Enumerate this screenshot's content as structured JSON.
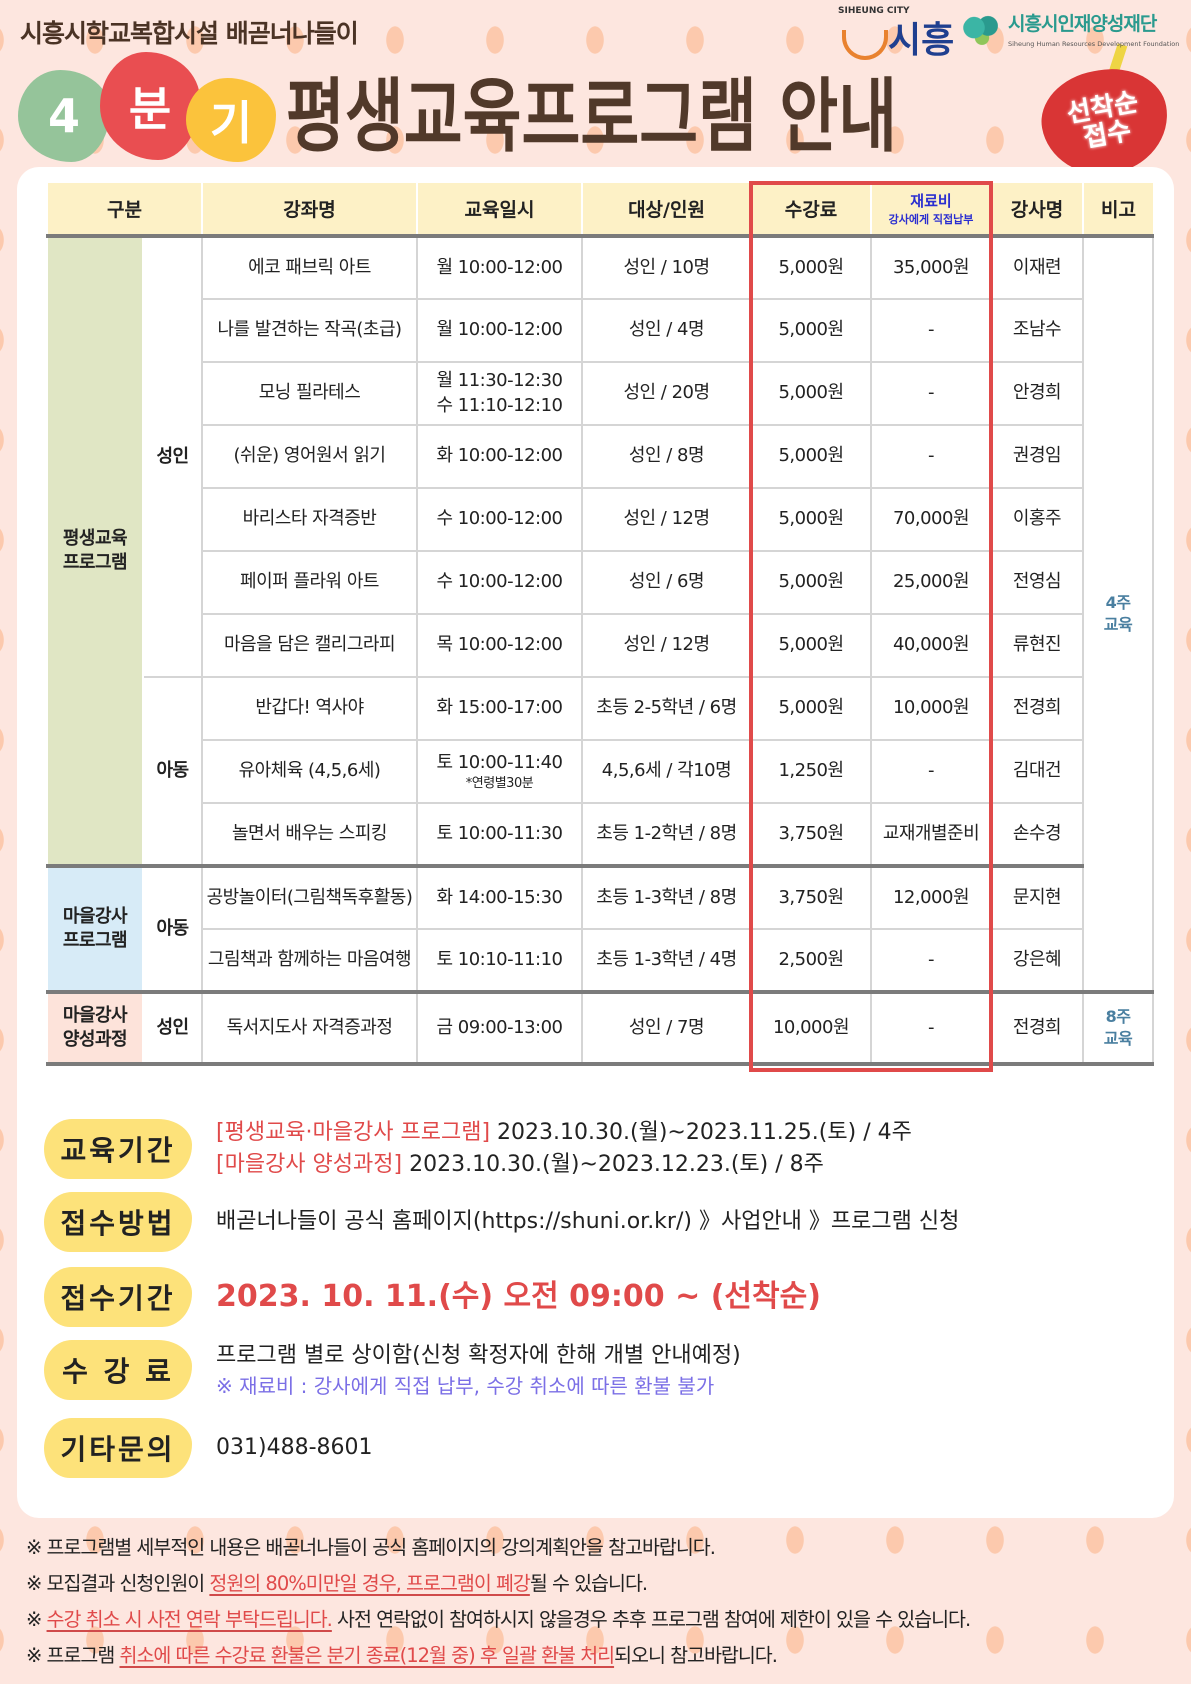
{
  "header": {
    "subtitle": "시흥시학교복합시설 배곧너나들이",
    "quarter": [
      "4",
      "분",
      "기"
    ],
    "title": "평생교육프로그램 안내",
    "apple_badge": "선착순\n접수",
    "logo_city_small": "SIHEUNG CITY",
    "logo_city": "시흥",
    "logo_foundation": "시흥시인재양성재단",
    "logo_foundation_en": "Siheung Human Resources Development Foundation"
  },
  "table": {
    "headers": {
      "category": "구분",
      "course": "강좌명",
      "schedule": "교육일시",
      "target": "대상/인원",
      "fee": "수강료",
      "material": "재료비",
      "material_note": "강사에게 직접납부",
      "instructor": "강사명",
      "remarks": "비고"
    },
    "groups": [
      {
        "label": "평생교육\n프로그램",
        "bg": "#e0e6c4",
        "note": "4주\n교육",
        "subgroups": [
          {
            "label": "성인",
            "rows": [
              {
                "course": "에코 패브릭 아트",
                "schedule": "월 10:00-12:00",
                "target": "성인 / 10명",
                "fee": "5,000원",
                "material": "35,000원",
                "instructor": "이재련"
              },
              {
                "course": "나를 발견하는 작곡(초급)",
                "schedule": "월 10:00-12:00",
                "target": "성인 / 4명",
                "fee": "5,000원",
                "material": "-",
                "instructor": "조남수"
              },
              {
                "course": "모닝 필라테스",
                "schedule": "월 11:30-12:30\n수 11:10-12:10",
                "target": "성인  /  20명",
                "fee": "5,000원",
                "material": "-",
                "instructor": "안경희"
              },
              {
                "course": "(쉬운) 영어원서 읽기",
                "schedule": "화 10:00-12:00",
                "target": "성인 / 8명",
                "fee": "5,000원",
                "material": "-",
                "instructor": "권경임"
              },
              {
                "course": "바리스타 자격증반",
                "schedule": "수 10:00-12:00",
                "target": "성인 / 12명",
                "fee": "5,000원",
                "material": "70,000원",
                "instructor": "이홍주"
              },
              {
                "course": "페이퍼 플라워 아트",
                "schedule": "수 10:00-12:00",
                "target": "성인 / 6명",
                "fee": "5,000원",
                "material": "25,000원",
                "instructor": "전영심"
              },
              {
                "course": "마음을 담은 캘리그라피",
                "schedule": "목 10:00-12:00",
                "target": "성인 / 12명",
                "fee": "5,000원",
                "material": "40,000원",
                "instructor": "류현진"
              }
            ]
          },
          {
            "label": "아동",
            "rows": [
              {
                "course": "반갑다! 역사야",
                "schedule": "화 15:00-17:00",
                "target": "초등 2-5학년 / 6명",
                "fee": "5,000원",
                "material": "10,000원",
                "instructor": "전경희"
              },
              {
                "course": "유아체육 (4,5,6세)",
                "schedule": "토 10:00-11:40",
                "schedule_note": "*연령별30분",
                "target": "4,5,6세 / 각10명",
                "fee": "1,250원",
                "material": "-",
                "instructor": "김대건"
              },
              {
                "course": "놀면서 배우는 스피킹",
                "schedule": "토 10:00-11:30",
                "target": "초등 1-2학년  /  8명",
                "fee": "3,750원",
                "material": "교재개별준비",
                "instructor": "손수경"
              }
            ]
          }
        ]
      },
      {
        "label": "마을강사\n프로그램",
        "bg": "#d7ebf7",
        "subgroups": [
          {
            "label": "아동",
            "rows": [
              {
                "course": "공방놀이터(그림책독후활동)",
                "schedule": "화 14:00-15:30",
                "target": "초등 1-3학년 / 8명",
                "fee": "3,750원",
                "material": "12,000원",
                "instructor": "문지현"
              },
              {
                "course": "그림책과 함께하는 마음여행",
                "schedule": "토 10:10-11:10",
                "target": "초등 1-3학년 / 4명",
                "fee": "2,500원",
                "material": "-",
                "instructor": "강은혜"
              }
            ]
          }
        ]
      },
      {
        "label": "마을강사\n양성과정",
        "bg": "#fde3da",
        "note": "8주\n교육",
        "subgroups": [
          {
            "label": "성인",
            "rows": [
              {
                "course": "독서지도사 자격증과정",
                "schedule": "금 09:00-13:00",
                "target": "성인 / 7명",
                "fee": "10,000원",
                "material": "-",
                "instructor": "전경희"
              }
            ]
          }
        ]
      }
    ]
  },
  "info": {
    "period": {
      "label": "교육기간",
      "line1_tag": "[평생교육·마을강사 프로그램]",
      "line1": " 2023.10.30.(월)~2023.11.25.(토) / 4주",
      "line2_tag": "[마을강사 양성과정]",
      "line2": " 2023.10.30.(월)~2023.12.23.(토) / 8주"
    },
    "method": {
      "label": "접수방법",
      "text": "배곧너나들이 공식 홈페이지(https://shuni.or.kr/) 》사업안내 》프로그램 신청"
    },
    "reception": {
      "label": "접수기간",
      "text": "2023. 10. 11.(수) 오전 09:00 ~ (선착순)"
    },
    "fee": {
      "label": "수 강 료",
      "text": "프로그램 별로 상이함(신청 확정자에 한해 개별 안내예정)",
      "note": "※ 재료비 : 강사에게 직접 납부, 수강 취소에 따른 환불 불가"
    },
    "contact": {
      "label": "기타문의",
      "text": "031)488-8601"
    }
  },
  "notes": [
    {
      "pre": "※ 프로그램별 세부적인 내용은 배곧너나들이 공식 홈페이지의 강의계획안을 참고바랍니다.",
      "hl": "",
      "post": ""
    },
    {
      "pre": "※ 모집결과 신청인원이 ",
      "hl": "정원의 80%미만일 경우, 프로그램이 폐강",
      "post": "될 수 있습니다."
    },
    {
      "pre": "※ ",
      "hl": "수강 취소 시 사전 연락 부탁드립니다.",
      "post": " 사전 연락없이 참여하시지 않을경우 추후 프로그램 참여에 제한이 있을 수 있습니다."
    },
    {
      "pre": "※ 프로그램 ",
      "hl": "취소에 따른 수강료 환불은 분기 종료(12월 중) 후 일괄 환불 처리",
      "post": "되오니 참고바랍니다."
    }
  ],
  "colors": {
    "accent_red": "#e04a4a",
    "badge_yellow": "#fde27a",
    "header_yellow": "#fdf1c6",
    "title_brown": "#51392a"
  }
}
